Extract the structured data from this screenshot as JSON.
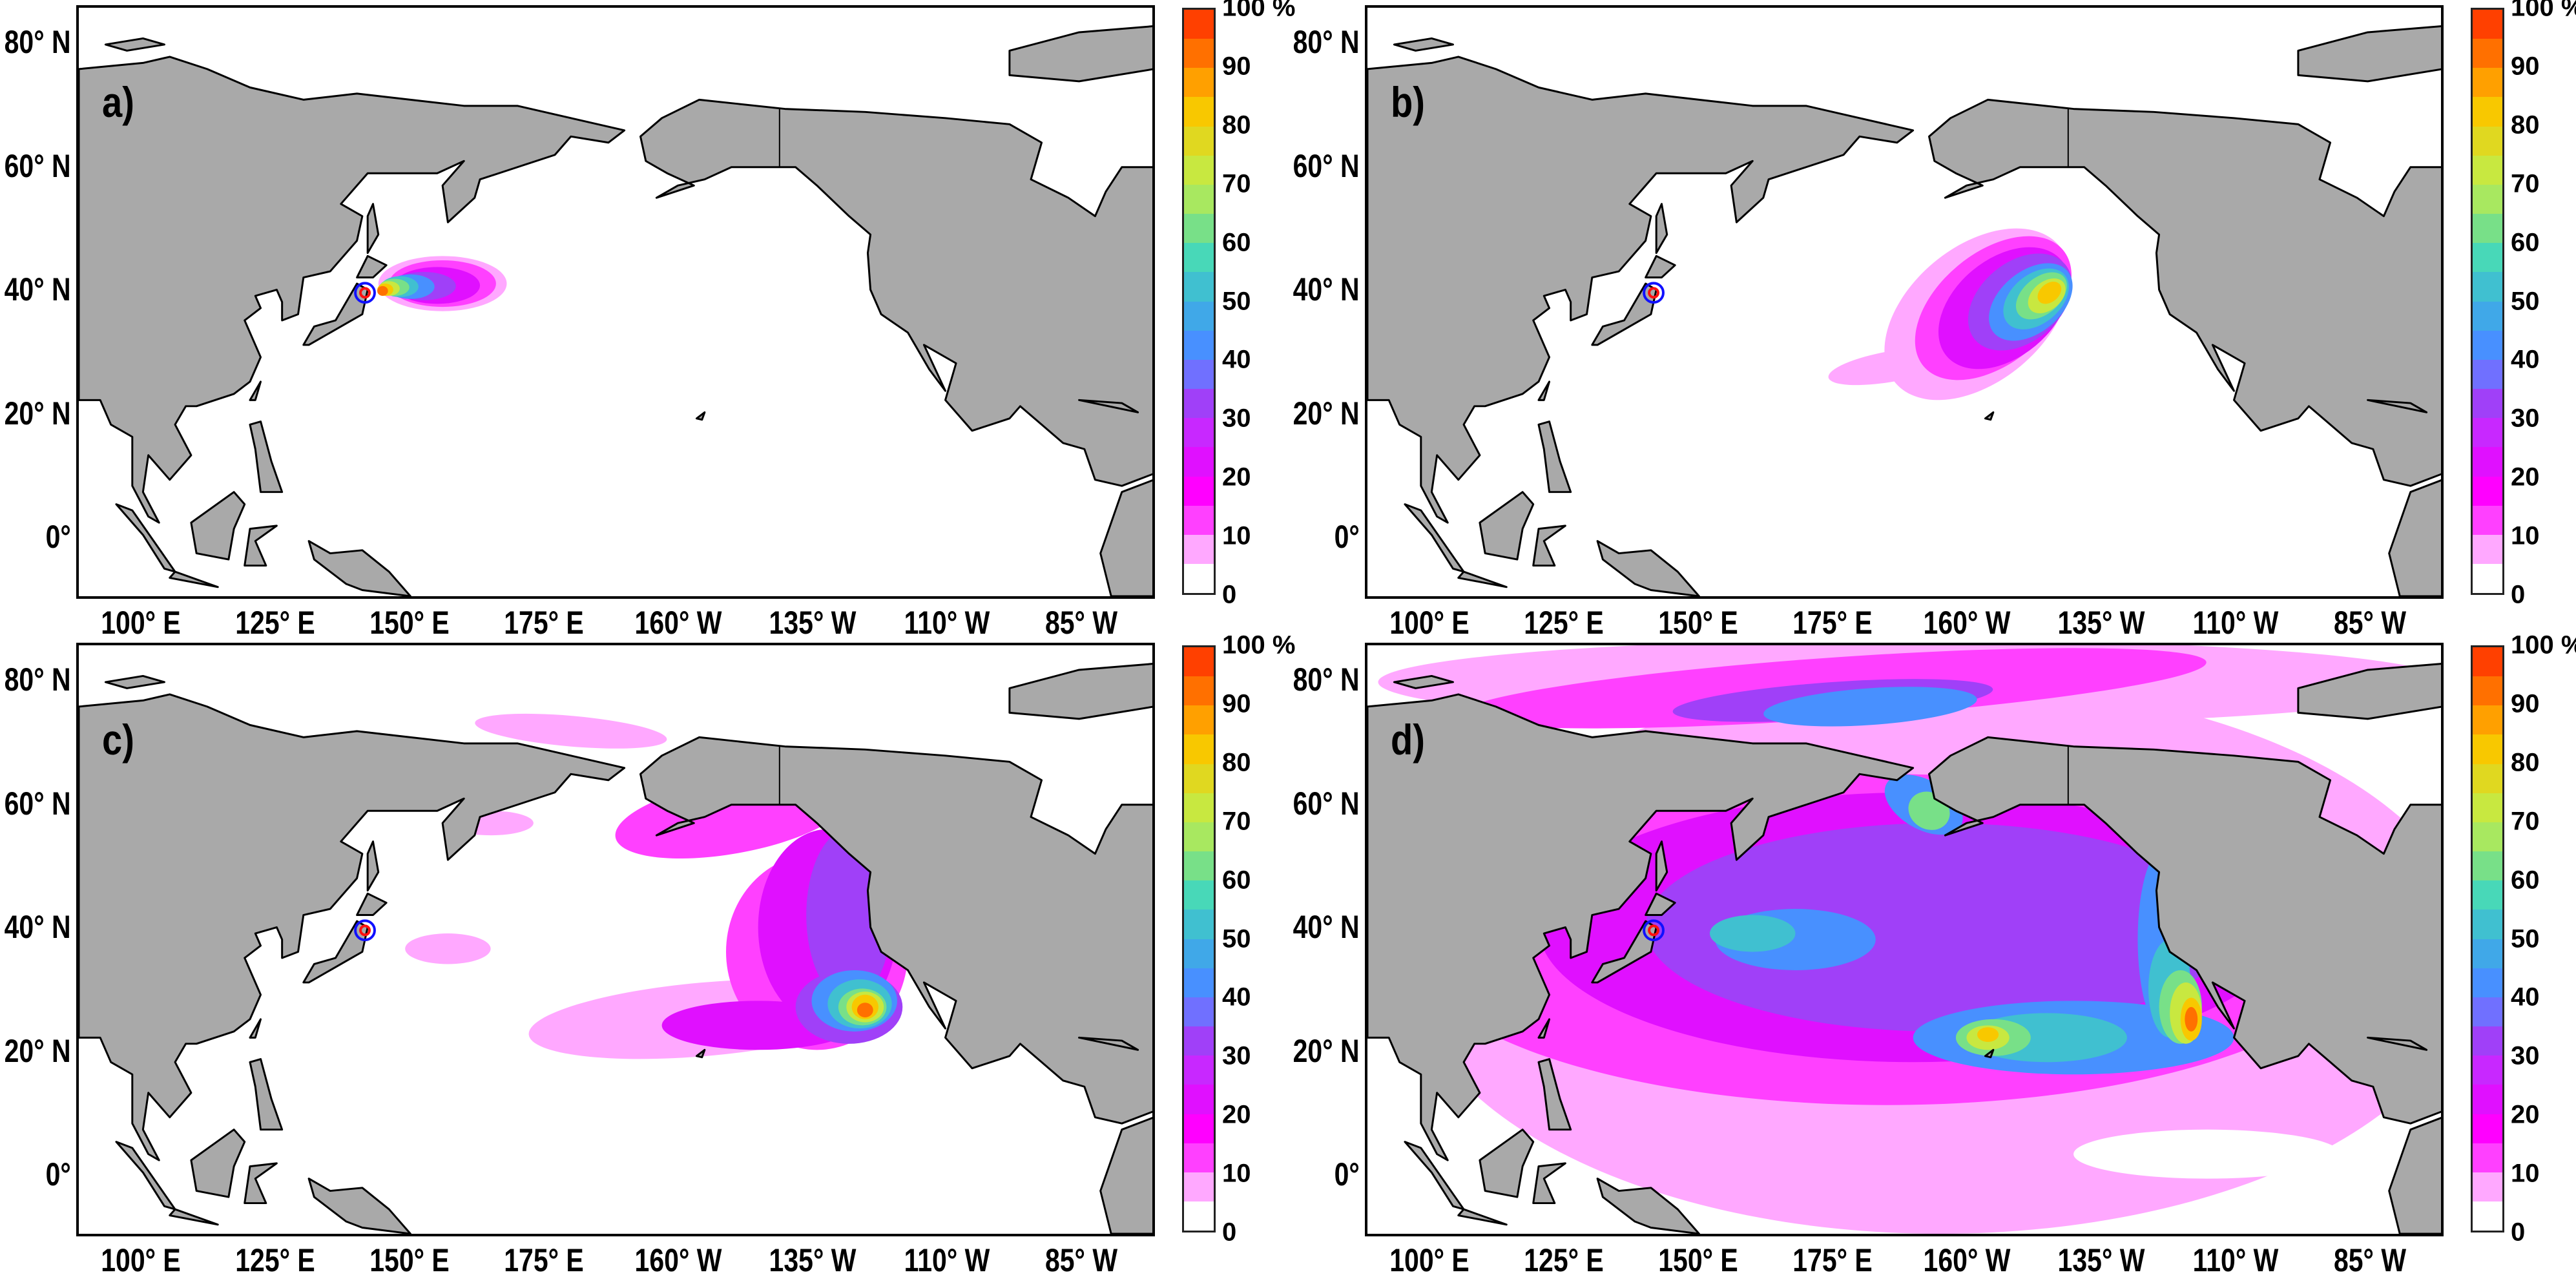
{
  "colorbar": {
    "unit_label": "100 %",
    "tick_labels": [
      "0",
      "10",
      "20",
      "30",
      "40",
      "50",
      "60",
      "70",
      "80",
      "90",
      "100 %"
    ],
    "colors": [
      "#ffffff",
      "#ffa8ff",
      "#ff40ff",
      "#ff00ff",
      "#e010ff",
      "#c828ff",
      "#a040f8",
      "#7070ff",
      "#4890ff",
      "#40a8e8",
      "#40c0d0",
      "#48d8b8",
      "#78e088",
      "#a8e860",
      "#c8e840",
      "#e0d820",
      "#f8c800",
      "#ffa000",
      "#ff7000",
      "#ff4000"
    ]
  },
  "land_color": "#a9a9a9",
  "source_marker": {
    "lon": 141.5,
    "lat": 39.5,
    "outer_color": "#1010ff",
    "inner_color": "#ff1010"
  },
  "lat_ticks": [
    {
      "label": "80° N",
      "lat": 80
    },
    {
      "label": "60° N",
      "lat": 60
    },
    {
      "label": "40° N",
      "lat": 40
    },
    {
      "label": "20° N",
      "lat": 20
    },
    {
      "label": "0°",
      "lat": 0
    }
  ],
  "lon_ticks": [
    {
      "label": "100° E",
      "lon": 100
    },
    {
      "label": "125° E",
      "lon": 125
    },
    {
      "label": "150° E",
      "lon": 150
    },
    {
      "label": "175° E",
      "lon": 175
    },
    {
      "label": "160° W",
      "lon": 200
    },
    {
      "label": "135° W",
      "lon": 225
    },
    {
      "label": "110° W",
      "lon": 250
    },
    {
      "label": "85° W",
      "lon": 275
    }
  ],
  "panels": [
    {
      "letter": "a)",
      "fields": [
        {
          "level": 5,
          "lon": 156,
          "lat": 41,
          "rx": 12,
          "ry": 4.5,
          "rot": 0
        },
        {
          "level": 10,
          "lon": 156,
          "lat": 41,
          "rx": 10,
          "ry": 3.8,
          "rot": 0
        },
        {
          "level": 20,
          "lon": 155,
          "lat": 40.7,
          "rx": 8,
          "ry": 3,
          "rot": 0
        },
        {
          "level": 30,
          "lon": 152.5,
          "lat": 40.6,
          "rx": 6,
          "ry": 2.3,
          "rot": 0
        },
        {
          "level": 40,
          "lon": 150,
          "lat": 40.5,
          "rx": 4.5,
          "ry": 2,
          "rot": 0
        },
        {
          "level": 50,
          "lon": 148,
          "lat": 40.5,
          "rx": 3.5,
          "ry": 1.7,
          "rot": 0
        },
        {
          "level": 60,
          "lon": 147,
          "lat": 40.4,
          "rx": 2.8,
          "ry": 1.4,
          "rot": 0
        },
        {
          "level": 70,
          "lon": 146,
          "lat": 40.2,
          "rx": 2,
          "ry": 1.2,
          "rot": 0
        },
        {
          "level": 80,
          "lon": 145.3,
          "lat": 40,
          "rx": 1.5,
          "ry": 1,
          "rot": 0
        },
        {
          "level": 90,
          "lon": 144.8,
          "lat": 39.8,
          "rx": 1,
          "ry": 0.8,
          "rot": 0
        }
      ]
    },
    {
      "letter": "b)",
      "fields": [
        {
          "level": 5,
          "lon": 186,
          "lat": 27.5,
          "rx": 12,
          "ry": 2.5,
          "rot": -10
        },
        {
          "level": 5,
          "lon": 202,
          "lat": 36,
          "rx": 20,
          "ry": 11,
          "rot": -40
        },
        {
          "level": 10,
          "lon": 205,
          "lat": 37,
          "rx": 17,
          "ry": 9,
          "rot": -40
        },
        {
          "level": 20,
          "lon": 207,
          "lat": 37,
          "rx": 14,
          "ry": 8,
          "rot": -40
        },
        {
          "level": 30,
          "lon": 210,
          "lat": 38,
          "rx": 11,
          "ry": 6.5,
          "rot": -40
        },
        {
          "level": 40,
          "lon": 212,
          "lat": 38,
          "rx": 9,
          "ry": 5,
          "rot": -40
        },
        {
          "level": 50,
          "lon": 213,
          "lat": 38.5,
          "rx": 7,
          "ry": 4,
          "rot": -40
        },
        {
          "level": 60,
          "lon": 214,
          "lat": 39,
          "rx": 5.5,
          "ry": 3,
          "rot": -40
        },
        {
          "level": 70,
          "lon": 215,
          "lat": 39,
          "rx": 4,
          "ry": 2.3,
          "rot": -40
        },
        {
          "level": 80,
          "lon": 215.5,
          "lat": 39.5,
          "rx": 2.5,
          "ry": 1.5,
          "rot": -40
        }
      ]
    },
    {
      "letter": "c)",
      "fields": [
        {
          "level": 5,
          "lon": 157,
          "lat": 36.5,
          "rx": 8,
          "ry": 2.5,
          "rot": 0
        },
        {
          "level": 5,
          "lon": 205,
          "lat": 25,
          "rx": 33,
          "ry": 6,
          "rot": -5
        },
        {
          "level": 5,
          "lon": 180,
          "lat": 72,
          "rx": 18,
          "ry": 2.5,
          "rot": 5
        },
        {
          "level": 5,
          "lon": 165,
          "lat": 57,
          "rx": 8,
          "ry": 2,
          "rot": 0
        },
        {
          "level": 10,
          "lon": 210,
          "lat": 58,
          "rx": 22,
          "ry": 6,
          "rot": -10
        },
        {
          "level": 10,
          "lon": 226,
          "lat": 36,
          "rx": 17,
          "ry": 16,
          "rot": 0
        },
        {
          "level": 20,
          "lon": 228,
          "lat": 40,
          "rx": 13,
          "ry": 16,
          "rot": 0
        },
        {
          "level": 20,
          "lon": 215,
          "lat": 24,
          "rx": 18,
          "ry": 4,
          "rot": 0
        },
        {
          "level": 30,
          "lon": 232,
          "lat": 42,
          "rx": 8,
          "ry": 14,
          "rot": 0
        },
        {
          "level": 30,
          "lon": 232,
          "lat": 27,
          "rx": 10,
          "ry": 6,
          "rot": 0
        },
        {
          "level": 40,
          "lon": 233,
          "lat": 28,
          "rx": 8,
          "ry": 5,
          "rot": 0
        },
        {
          "level": 50,
          "lon": 234,
          "lat": 27.5,
          "rx": 6,
          "ry": 4,
          "rot": 0
        },
        {
          "level": 60,
          "lon": 234.5,
          "lat": 27,
          "rx": 4.5,
          "ry": 3,
          "rot": 0
        },
        {
          "level": 70,
          "lon": 235,
          "lat": 27,
          "rx": 3.5,
          "ry": 2.5,
          "rot": 0
        },
        {
          "level": 80,
          "lon": 235,
          "lat": 27,
          "rx": 2.5,
          "ry": 2,
          "rot": 0
        },
        {
          "level": 90,
          "lon": 235,
          "lat": 26.5,
          "rx": 1.5,
          "ry": 1.2,
          "rot": 0
        }
      ]
    },
    {
      "letter": "d)",
      "fields": [
        {
          "level": 5,
          "lon": 195,
          "lat": 35,
          "rx": 100,
          "ry": 45,
          "rot": 0
        },
        {
          "level": 5,
          "lon": 190,
          "lat": 80,
          "rx": 100,
          "ry": 7,
          "rot": 0
        },
        {
          "level": 0,
          "lon": 245,
          "lat": 3,
          "rx": 25,
          "ry": 4,
          "rot": 0
        },
        {
          "level": 0,
          "lon": 220,
          "lat": 82,
          "rx": 8,
          "ry": 1.8,
          "rot": 0
        },
        {
          "level": 10,
          "lon": 185,
          "lat": 38,
          "rx": 90,
          "ry": 27,
          "rot": 0
        },
        {
          "level": 10,
          "lon": 175,
          "lat": 79,
          "rx": 70,
          "ry": 5,
          "rot": -4
        },
        {
          "level": 20,
          "lon": 190,
          "lat": 40,
          "rx": 70,
          "ry": 22,
          "rot": 0
        },
        {
          "level": 30,
          "lon": 195,
          "lat": 40,
          "rx": 55,
          "ry": 17,
          "rot": 0
        },
        {
          "level": 30,
          "lon": 175,
          "lat": 77,
          "rx": 30,
          "ry": 3,
          "rot": -4
        },
        {
          "level": 40,
          "lon": 168,
          "lat": 38,
          "rx": 15,
          "ry": 5,
          "rot": 0
        },
        {
          "level": 40,
          "lon": 220,
          "lat": 22,
          "rx": 30,
          "ry": 6,
          "rot": 0
        },
        {
          "level": 40,
          "lon": 237,
          "lat": 38,
          "rx": 5,
          "ry": 15,
          "rot": 0
        },
        {
          "level": 40,
          "lon": 182,
          "lat": 76,
          "rx": 20,
          "ry": 3,
          "rot": -4
        },
        {
          "level": 40,
          "lon": 192,
          "lat": 60,
          "rx": 8,
          "ry": 4,
          "rot": 30
        },
        {
          "level": 50,
          "lon": 160,
          "lat": 39,
          "rx": 8,
          "ry": 3,
          "rot": 0
        },
        {
          "level": 50,
          "lon": 215,
          "lat": 22,
          "rx": 15,
          "ry": 4,
          "rot": 0
        },
        {
          "level": 50,
          "lon": 238,
          "lat": 30,
          "rx": 4,
          "ry": 8,
          "rot": 0
        },
        {
          "level": 60,
          "lon": 205,
          "lat": 22,
          "rx": 7,
          "ry": 3,
          "rot": 0
        },
        {
          "level": 60,
          "lon": 240,
          "lat": 27,
          "rx": 4,
          "ry": 6,
          "rot": 0
        },
        {
          "level": 60,
          "lon": 193,
          "lat": 59,
          "rx": 4,
          "ry": 3,
          "rot": 30
        },
        {
          "level": 70,
          "lon": 204,
          "lat": 22,
          "rx": 4,
          "ry": 2,
          "rot": 0
        },
        {
          "level": 70,
          "lon": 241,
          "lat": 26,
          "rx": 3,
          "ry": 5,
          "rot": 0
        },
        {
          "level": 80,
          "lon": 242,
          "lat": 25,
          "rx": 2,
          "ry": 3.5,
          "rot": 0
        },
        {
          "level": 80,
          "lon": 204,
          "lat": 22.5,
          "rx": 2,
          "ry": 1.2,
          "rot": 0
        },
        {
          "level": 90,
          "lon": 242,
          "lat": 25,
          "rx": 1.2,
          "ry": 2,
          "rot": 0
        }
      ]
    }
  ]
}
